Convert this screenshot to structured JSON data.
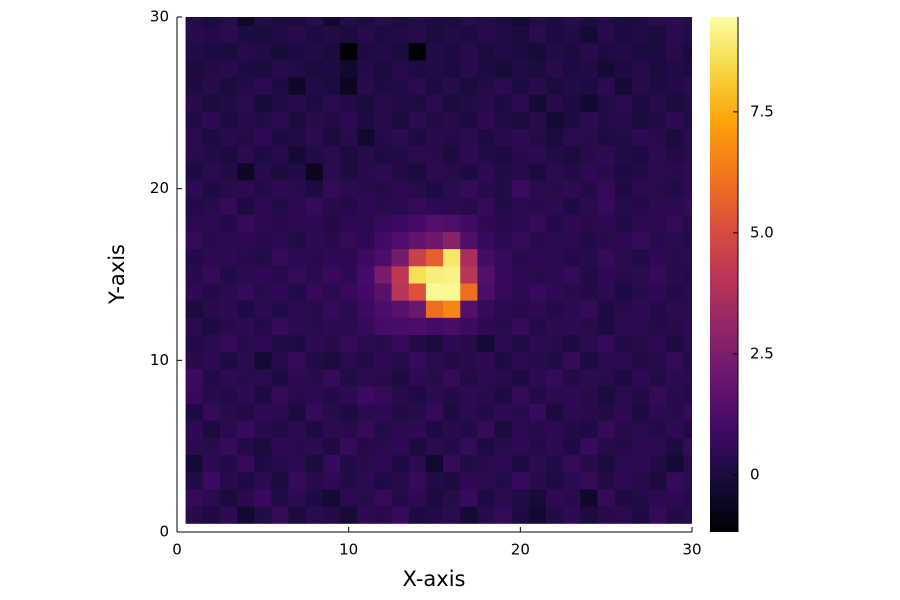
{
  "chart_data": {
    "type": "heatmap",
    "xlabel": "X-axis",
    "ylabel": "Y-axis",
    "colormap": "inferno",
    "x": [
      1,
      2,
      3,
      4,
      5,
      6,
      7,
      8,
      9,
      10,
      11,
      12,
      13,
      14,
      15,
      16,
      17,
      18,
      19,
      20,
      21,
      22,
      23,
      24,
      25,
      26,
      27,
      28,
      29,
      30
    ],
    "y": [
      1,
      2,
      3,
      4,
      5,
      6,
      7,
      8,
      9,
      10,
      11,
      12,
      13,
      14,
      15,
      16,
      17,
      18,
      19,
      20,
      21,
      22,
      23,
      24,
      25,
      26,
      27,
      28,
      29,
      30
    ],
    "z": [
      [
        0.3,
        0.1,
        0.5,
        -0.3,
        0.2,
        0.6,
        0.0,
        0.4,
        0.2,
        -0.1,
        0.5,
        0.3,
        0.7,
        0.1,
        0.2,
        0.4,
        -0.2,
        0.3,
        0.6,
        0.1,
        -0.3,
        0.2,
        0.5,
        0.0,
        0.3,
        0.4,
        0.1,
        0.6,
        0.2,
        0.3
      ],
      [
        0.6,
        0.4,
        0.0,
        0.3,
        0.7,
        0.2,
        0.5,
        0.1,
        -0.2,
        0.4,
        0.3,
        0.6,
        0.2,
        0.5,
        0.0,
        0.3,
        0.7,
        0.1,
        0.4,
        0.2,
        -0.1,
        0.5,
        0.3,
        -0.4,
        0.6,
        0.1,
        0.2,
        0.4,
        0.5,
        0.2
      ],
      [
        0.2,
        0.8,
        0.3,
        0.1,
        0.4,
        0.0,
        0.6,
        0.3,
        0.5,
        0.2,
        0.4,
        0.1,
        0.3,
        0.6,
        0.2,
        0.0,
        0.5,
        0.4,
        0.2,
        0.7,
        0.3,
        0.1,
        0.4,
        0.6,
        0.2,
        0.5,
        0.3,
        0.0,
        0.6,
        0.4
      ],
      [
        -0.2,
        0.5,
        0.2,
        0.6,
        0.1,
        0.3,
        0.4,
        0.0,
        0.7,
        0.2,
        0.3,
        0.5,
        0.1,
        0.4,
        -0.3,
        0.6,
        0.2,
        0.3,
        0.5,
        0.1,
        0.4,
        0.2,
        0.6,
        0.3,
        0.0,
        0.4,
        0.5,
        0.2,
        -0.2,
        0.3
      ],
      [
        0.4,
        0.3,
        0.6,
        0.2,
        0.0,
        0.5,
        0.3,
        0.4,
        0.1,
        0.6,
        0.2,
        0.3,
        0.5,
        0.0,
        0.4,
        0.2,
        0.6,
        0.1,
        0.3,
        0.5,
        0.2,
        0.4,
        0.1,
        0.7,
        0.3,
        0.2,
        0.5,
        0.4,
        0.1,
        0.6
      ],
      [
        0.5,
        0.0,
        0.4,
        0.7,
        0.3,
        0.2,
        0.5,
        0.1,
        0.4,
        0.3,
        0.6,
        0.2,
        0.4,
        0.5,
        0.1,
        0.3,
        0.2,
        0.6,
        0.0,
        0.4,
        0.3,
        0.5,
        0.2,
        0.1,
        0.6,
        0.3,
        0.4,
        0.2,
        0.5,
        0.1
      ],
      [
        0.1,
        0.6,
        0.3,
        0.2,
        0.5,
        0.4,
        0.0,
        0.6,
        0.3,
        0.1,
        0.4,
        0.5,
        0.2,
        0.3,
        0.6,
        0.1,
        0.4,
        0.2,
        0.5,
        0.3,
        0.7,
        0.0,
        0.4,
        0.3,
        0.2,
        0.5,
        0.1,
        0.4,
        0.3,
        0.6
      ],
      [
        0.7,
        0.3,
        0.2,
        0.5,
        0.1,
        0.6,
        0.3,
        0.4,
        0.2,
        0.5,
        0.8,
        0.6,
        0.3,
        0.1,
        0.4,
        0.2,
        0.5,
        0.3,
        0.1,
        0.6,
        0.2,
        0.4,
        0.5,
        0.3,
        0.0,
        0.4,
        0.2,
        0.6,
        0.3,
        0.2
      ],
      [
        0.8,
        0.2,
        0.5,
        0.3,
        0.4,
        0.1,
        0.5,
        0.3,
        0.6,
        0.2,
        0.4,
        0.3,
        0.1,
        0.5,
        0.3,
        0.6,
        0.2,
        0.4,
        0.3,
        0.1,
        0.5,
        0.6,
        0.2,
        0.4,
        0.3,
        0.1,
        0.5,
        0.2,
        0.4,
        0.3
      ],
      [
        0.3,
        0.5,
        0.1,
        0.4,
        -0.2,
        0.3,
        0.6,
        0.2,
        0.0,
        0.4,
        0.2,
        0.5,
        0.3,
        0.6,
        0.4,
        0.2,
        0.3,
        0.5,
        0.1,
        0.4,
        0.3,
        0.2,
        0.6,
        0.1,
        0.4,
        0.5,
        0.2,
        0.3,
        0.6,
        0.2
      ],
      [
        0.2,
        0.4,
        0.6,
        0.3,
        0.5,
        0.2,
        0.1,
        0.5,
        0.3,
        0.6,
        0.4,
        0.3,
        0.7,
        0.2,
        0.0,
        0.5,
        0.3,
        -0.2,
        0.4,
        0.2,
        0.5,
        0.3,
        0.1,
        0.4,
        0.6,
        0.2,
        0.3,
        0.5,
        0.1,
        0.4
      ],
      [
        0.4,
        0.1,
        0.3,
        0.5,
        0.2,
        0.6,
        0.4,
        0.3,
        0.5,
        0.4,
        0.6,
        1.0,
        1.1,
        1.2,
        1.0,
        1.1,
        0.8,
        0.5,
        0.3,
        0.6,
        0.2,
        0.4,
        0.5,
        0.3,
        0.1,
        0.5,
        0.4,
        0.2,
        0.3,
        0.5
      ],
      [
        0.0,
        0.3,
        0.5,
        0.1,
        0.4,
        0.2,
        0.5,
        0.3,
        0.6,
        0.4,
        0.8,
        1.2,
        1.5,
        2.0,
        6.0,
        6.6,
        1.4,
        0.6,
        0.4,
        0.3,
        0.5,
        0.2,
        0.4,
        0.6,
        0.1,
        0.3,
        0.5,
        0.2,
        0.4,
        0.3
      ],
      [
        0.5,
        0.2,
        0.4,
        0.6,
        0.3,
        0.5,
        0.2,
        0.6,
        0.4,
        0.7,
        0.9,
        1.5,
        4.0,
        5.2,
        9.3,
        9.3,
        6.0,
        1.2,
        0.6,
        0.4,
        0.7,
        0.5,
        0.3,
        0.2,
        0.4,
        0.1,
        0.3,
        0.5,
        0.2,
        0.4
      ],
      [
        0.3,
        0.6,
        0.2,
        0.4,
        0.5,
        0.3,
        0.6,
        0.4,
        0.7,
        0.5,
        1.0,
        2.4,
        4.2,
        8.6,
        9.0,
        9.1,
        4.0,
        1.4,
        0.7,
        0.5,
        0.3,
        0.4,
        0.6,
        0.2,
        0.5,
        0.3,
        0.4,
        0.6,
        0.3,
        0.2
      ],
      [
        0.2,
        0.4,
        0.5,
        0.3,
        0.2,
        0.6,
        0.4,
        0.3,
        0.5,
        0.4,
        0.8,
        1.2,
        2.3,
        4.6,
        5.6,
        8.8,
        3.6,
        1.0,
        0.6,
        0.3,
        0.5,
        0.4,
        0.2,
        0.3,
        0.6,
        0.4,
        0.2,
        0.5,
        0.3,
        0.4
      ],
      [
        0.6,
        0.3,
        0.4,
        0.5,
        0.3,
        0.4,
        0.2,
        0.5,
        0.3,
        0.6,
        0.5,
        0.9,
        1.3,
        1.8,
        2.1,
        2.8,
        1.3,
        0.7,
        0.4,
        0.6,
        0.3,
        0.5,
        0.4,
        0.2,
        0.3,
        0.5,
        0.6,
        0.3,
        0.4,
        0.2
      ],
      [
        0.4,
        0.5,
        0.2,
        0.6,
        0.4,
        0.3,
        0.5,
        0.4,
        0.2,
        0.5,
        0.4,
        0.6,
        0.8,
        1.0,
        1.4,
        1.3,
        0.9,
        0.5,
        0.3,
        0.4,
        0.6,
        0.2,
        0.5,
        0.3,
        0.4,
        0.2,
        0.5,
        0.4,
        0.6,
        0.3
      ],
      [
        0.2,
        0.3,
        0.6,
        0.1,
        0.5,
        0.2,
        0.4,
        0.6,
        0.3,
        0.2,
        0.5,
        0.3,
        0.4,
        0.6,
        0.5,
        0.4,
        0.3,
        0.6,
        0.2,
        0.4,
        0.3,
        0.5,
        0.1,
        0.4,
        0.6,
        0.3,
        0.2,
        0.5,
        0.4,
        0.6
      ],
      [
        0.5,
        0.1,
        0.3,
        0.4,
        0.2,
        0.5,
        0.3,
        0.1,
        0.6,
        0.4,
        0.3,
        0.2,
        0.5,
        0.3,
        0.1,
        0.4,
        0.6,
        0.3,
        0.2,
        0.8,
        0.4,
        0.3,
        0.5,
        0.2,
        0.6,
        0.1,
        0.4,
        0.3,
        0.2,
        0.5
      ],
      [
        0.1,
        0.4,
        0.2,
        -0.5,
        0.3,
        0.0,
        0.2,
        -0.6,
        0.4,
        0.1,
        0.3,
        0.5,
        0.2,
        0.0,
        0.4,
        0.3,
        0.1,
        0.5,
        0.2,
        0.3,
        0.0,
        0.4,
        0.2,
        0.5,
        0.3,
        0.1,
        0.2,
        0.4,
        0.3,
        0.5
      ],
      [
        0.3,
        0.2,
        0.0,
        0.4,
        0.1,
        0.3,
        -0.2,
        0.2,
        0.4,
        0.0,
        0.3,
        0.1,
        0.2,
        0.4,
        0.3,
        0.0,
        0.5,
        0.2,
        0.1,
        0.3,
        0.4,
        0.2,
        0.0,
        0.3,
        0.5,
        0.2,
        0.1,
        0.4,
        0.2,
        0.3
      ],
      [
        0.4,
        0.1,
        0.3,
        0.2,
        0.5,
        0.1,
        0.2,
        0.4,
        0.0,
        0.3,
        -0.3,
        0.2,
        0.4,
        0.1,
        0.3,
        0.2,
        0.4,
        0.1,
        0.3,
        0.5,
        0.2,
        0.0,
        0.4,
        0.3,
        0.1,
        0.2,
        0.5,
        0.3,
        0.0,
        0.4
      ],
      [
        0.2,
        0.5,
        0.1,
        0.3,
        0.2,
        0.4,
        0.0,
        0.3,
        0.2,
        0.5,
        0.1,
        0.3,
        0.0,
        0.4,
        0.2,
        0.3,
        0.1,
        0.5,
        0.2,
        0.0,
        0.3,
        -0.2,
        0.1,
        0.4,
        0.2,
        0.3,
        0.0,
        0.2,
        0.5,
        0.1
      ],
      [
        0.3,
        0.0,
        0.2,
        0.4,
        -0.1,
        0.2,
        0.3,
        0.1,
        0.4,
        0.2,
        0.0,
        0.3,
        0.2,
        0.1,
        0.4,
        0.0,
        0.2,
        0.3,
        0.1,
        0.4,
        -0.2,
        0.3,
        0.1,
        -0.3,
        0.2,
        0.4,
        0.1,
        0.3,
        0.0,
        0.2
      ],
      [
        0.1,
        0.3,
        0.0,
        0.2,
        0.4,
        0.1,
        -0.5,
        0.2,
        0.0,
        -0.6,
        0.3,
        0.1,
        0.2,
        0.4,
        0.1,
        0.3,
        0.0,
        0.2,
        0.4,
        0.1,
        0.3,
        0.0,
        0.2,
        0.1,
        0.4,
        -0.2,
        0.3,
        0.1,
        0.2,
        0.4
      ],
      [
        0.0,
        0.2,
        0.3,
        0.1,
        0.0,
        0.3,
        0.2,
        0.0,
        0.1,
        -0.3,
        0.2,
        0.0,
        0.3,
        0.1,
        0.2,
        0.0,
        0.3,
        0.1,
        -0.1,
        0.2,
        0.0,
        0.3,
        0.1,
        0.2,
        -0.2,
        0.1,
        0.3,
        0.0,
        0.2,
        0.1
      ],
      [
        0.2,
        0.1,
        0.0,
        0.3,
        0.2,
        -0.1,
        0.1,
        0.2,
        0.0,
        -1.1,
        0.1,
        0.2,
        0.0,
        -1.1,
        0.2,
        0.1,
        0.3,
        0.0,
        0.2,
        0.1,
        -0.1,
        0.2,
        0.0,
        0.3,
        0.1,
        0.2,
        0.0,
        0.1,
        0.3,
        0.0
      ],
      [
        0.3,
        0.2,
        0.4,
        0.1,
        0.0,
        0.2,
        0.3,
        0.1,
        0.2,
        0.0,
        0.3,
        0.1,
        0.2,
        0.3,
        0.0,
        0.2,
        0.1,
        0.3,
        0.2,
        0.0,
        0.4,
        0.1,
        0.2,
        -0.2,
        0.3,
        0.1,
        0.2,
        0.0,
        0.4,
        0.2
      ],
      [
        0.2,
        0.0,
        0.3,
        -0.4,
        0.2,
        0.1,
        0.0,
        0.3,
        -0.3,
        0.2,
        0.1,
        0.3,
        0.0,
        0.2,
        0.1,
        0.0,
        0.3,
        0.2,
        0.1,
        -0.2,
        0.2,
        0.0,
        0.3,
        0.1,
        0.2,
        0.0,
        0.1,
        0.3,
        0.5,
        0.2
      ]
    ],
    "xlim": [
      0,
      30
    ],
    "ylim": [
      0,
      30
    ],
    "xticks": [
      0,
      10,
      20,
      30
    ],
    "yticks": [
      0,
      10,
      20,
      30
    ],
    "clim": [
      -1.18,
      9.46
    ],
    "cticks": [
      0,
      2.5,
      {
        "value": 5,
        "label": "5.0"
      },
      7.5
    ]
  }
}
